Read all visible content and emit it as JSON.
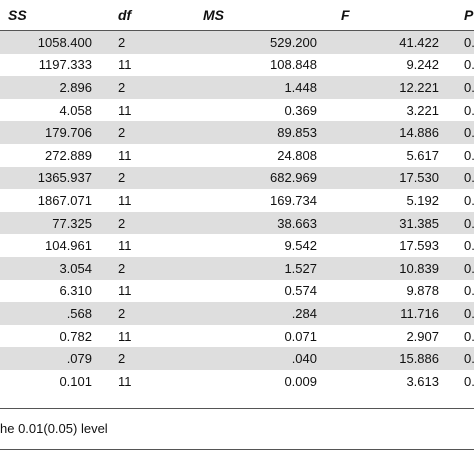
{
  "table": {
    "headers": [
      "SS",
      "df",
      "MS",
      "F",
      "P"
    ],
    "rows": [
      [
        "1058.400",
        "2",
        "529.200",
        "41.422",
        "0."
      ],
      [
        "1197.333",
        "11",
        "108.848",
        "9.242",
        "0."
      ],
      [
        "2.896",
        "2",
        "1.448",
        "12.221",
        "0."
      ],
      [
        "4.058",
        "11",
        "0.369",
        "3.221",
        "0."
      ],
      [
        "179.706",
        "2",
        "89.853",
        "14.886",
        "0."
      ],
      [
        "272.889",
        "11",
        "24.808",
        "5.617",
        "0."
      ],
      [
        "1365.937",
        "2",
        "682.969",
        "17.530",
        "0."
      ],
      [
        "1867.071",
        "11",
        "169.734",
        "5.192",
        "0."
      ],
      [
        "77.325",
        "2",
        "38.663",
        "31.385",
        "0."
      ],
      [
        "104.961",
        "11",
        "9.542",
        "17.593",
        "0."
      ],
      [
        "3.054",
        "2",
        "1.527",
        "10.839",
        "0."
      ],
      [
        "6.310",
        "11",
        "0.574",
        "9.878",
        "0."
      ],
      [
        ".568",
        "2",
        ".284",
        "11.716",
        "0."
      ],
      [
        "0.782",
        "11",
        "0.071",
        "2.907",
        "0."
      ],
      [
        ".079",
        "2",
        ".040",
        "15.886",
        "0."
      ],
      [
        "0.101",
        "11",
        "0.009",
        "3.613",
        "0."
      ]
    ]
  },
  "footnote": "he 0.01(0.05) level",
  "colors": {
    "shaded_row": "#dedede",
    "rule": "#555555"
  }
}
